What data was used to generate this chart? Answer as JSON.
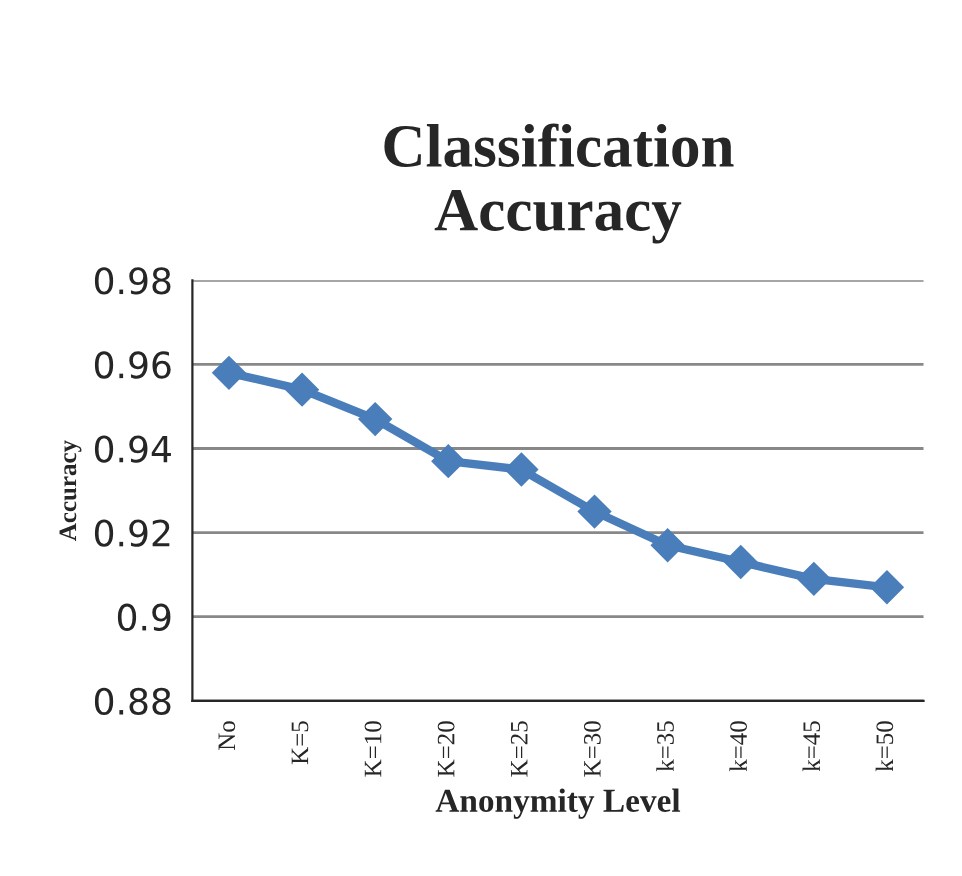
{
  "chart_data": {
    "type": "line",
    "title": "Classification\nAccuracy",
    "xlabel": "Anonymity Level",
    "ylabel": "Accuracy",
    "categories": [
      "No",
      "K=5",
      "K=10",
      "K=20",
      "K=25",
      "K=30",
      "k=35",
      "k=40",
      "k=45",
      "k=50"
    ],
    "series": [
      {
        "color": "#4a7ebb",
        "values": [
          0.958,
          0.954,
          0.947,
          0.937,
          0.935,
          0.925,
          0.917,
          0.913,
          0.909,
          0.907
        ]
      }
    ],
    "ylim": [
      0.88,
      0.98
    ],
    "yticks": [
      {
        "value": 0.88,
        "label": "0.88"
      },
      {
        "value": 0.9,
        "label": "0.9"
      },
      {
        "value": 0.92,
        "label": "0.92"
      },
      {
        "value": 0.94,
        "label": "0.94"
      },
      {
        "value": 0.96,
        "label": "0.96"
      },
      {
        "value": 0.98,
        "label": "0.98"
      }
    ],
    "grid": "y",
    "marker": "diamond",
    "line_style": "solid"
  }
}
